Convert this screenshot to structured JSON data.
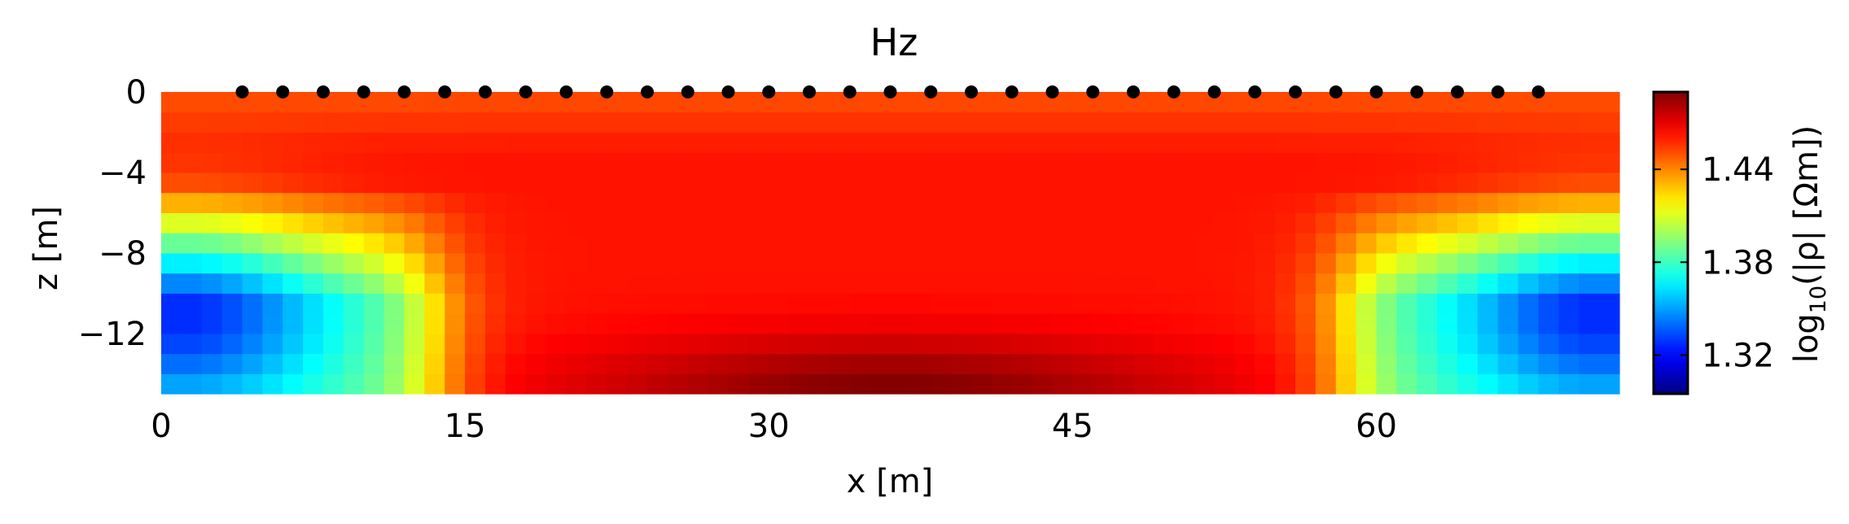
{
  "chart_data": {
    "type": "heatmap",
    "title": "Hz",
    "xlabel": "x [m]",
    "ylabel": "z [m]",
    "xlim": [
      0,
      72
    ],
    "ylim": [
      -15,
      0
    ],
    "x_ticks": [
      0,
      15,
      30,
      45,
      60
    ],
    "x_tick_labels": [
      "0",
      "15",
      "30",
      "45",
      "60"
    ],
    "y_ticks": [
      0,
      -4,
      -8,
      -12
    ],
    "y_tick_labels": [
      "0",
      "−4",
      "−8",
      "−12"
    ],
    "grid": false,
    "colormap": "jet",
    "colorbar": {
      "label_base": "log",
      "label_sub": "10",
      "label_rest": "(|ρ| [Ωm])",
      "range": [
        1.295,
        1.49
      ],
      "ticks": [
        1.32,
        1.38,
        1.44
      ],
      "tick_labels": [
        "1.32",
        "1.38",
        "1.44"
      ]
    },
    "receivers": {
      "z": 0,
      "x": [
        4,
        6,
        8,
        10,
        12,
        14,
        16,
        18,
        20,
        22,
        24,
        26,
        28,
        30,
        32,
        34,
        36,
        38,
        40,
        42,
        44,
        46,
        48,
        50,
        52,
        54,
        56,
        58,
        60,
        62,
        64,
        66,
        68
      ]
    },
    "cell_size": 1,
    "field_description": "log10 apparent resistivity: ~1.46 near surface and centre, ~1.49 at depth centre (x 26-46, z -13 to -15), minima ~1.30 at corners (x~1 and x~71, z~-11) rising through yellow/cyan toward x~14 and x~58"
  }
}
